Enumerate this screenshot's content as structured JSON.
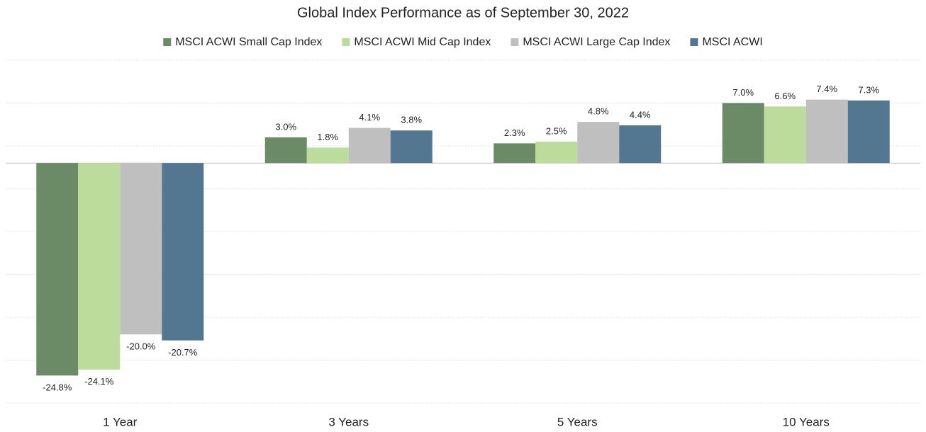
{
  "chart_data": {
    "type": "bar",
    "title": "Global Index Performance as of September 30, 2022",
    "categories": [
      "1 Year",
      "3 Years",
      "5 Years",
      "10 Years"
    ],
    "series": [
      {
        "name": "MSCI ACWI Small Cap Index",
        "color": "#6b8a66",
        "values": [
          -24.8,
          3.0,
          2.3,
          7.0
        ],
        "value_labels": [
          "-24.8%",
          "3.0%",
          "2.3%",
          "7.0%"
        ]
      },
      {
        "name": "MSCI ACWI Mid Cap Index",
        "color": "#bcdc9b",
        "values": [
          -24.1,
          1.8,
          2.5,
          6.6
        ],
        "value_labels": [
          "-24.1%",
          "1.8%",
          "2.5%",
          "6.6%"
        ]
      },
      {
        "name": "MSCI ACWI Large Cap Index",
        "color": "#bfbfbf",
        "values": [
          -20.0,
          4.1,
          4.8,
          7.4
        ],
        "value_labels": [
          "-20.0%",
          "4.1%",
          "4.8%",
          "7.4%"
        ]
      },
      {
        "name": "MSCI ACWI",
        "color": "#537791",
        "values": [
          -20.7,
          3.8,
          4.4,
          7.3
        ],
        "value_labels": [
          "-20.7%",
          "3.8%",
          "4.4%",
          "7.3%"
        ]
      }
    ],
    "ylim": [
      -28,
      12
    ],
    "yticks": [
      -28,
      -23,
      -18,
      -13,
      -8,
      -3,
      2,
      7,
      12
    ],
    "grid": true,
    "legend": "top"
  }
}
